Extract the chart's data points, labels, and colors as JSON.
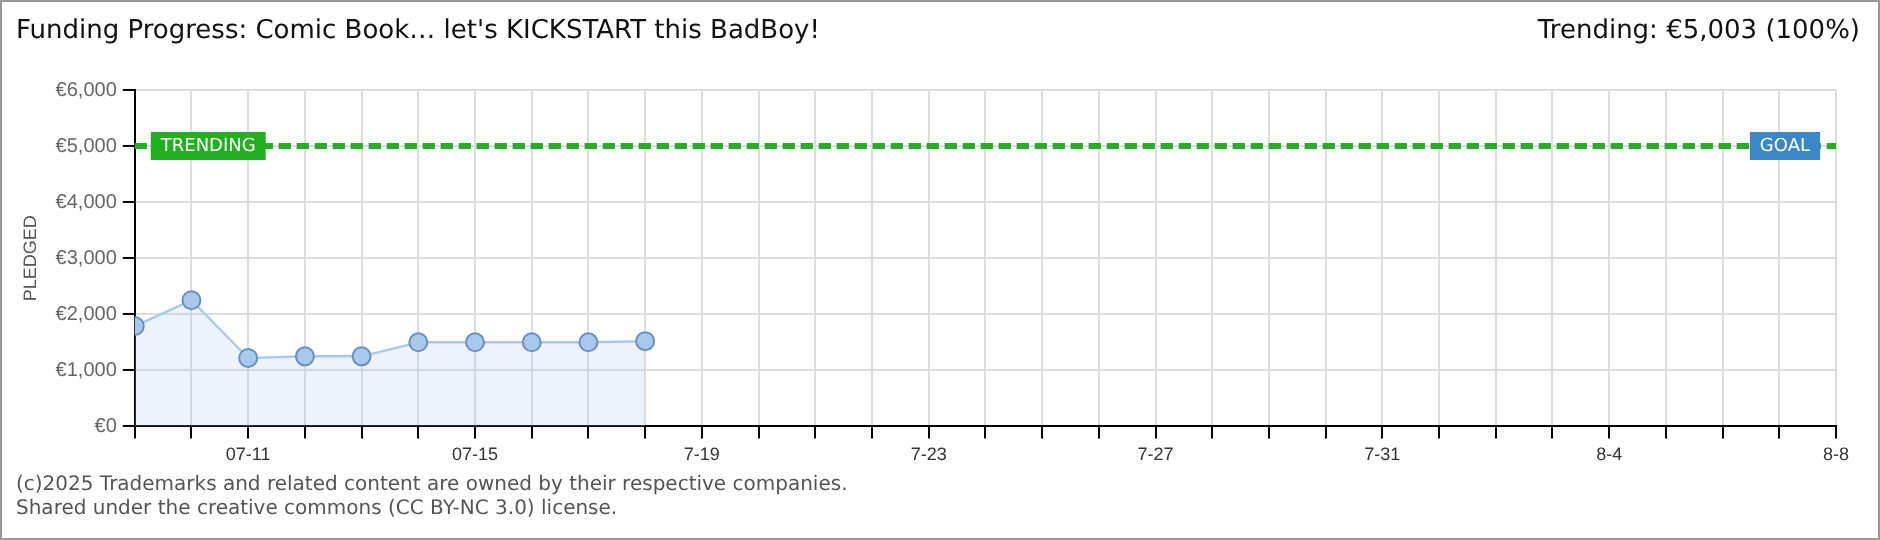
{
  "chart_data": {
    "type": "area",
    "title": "Funding Progress: Comic Book… let's KICKSTART this BadBoy!",
    "subtitle": "Trending:  €5,003 (100%)",
    "ylabel": "PLEDGED",
    "x": [
      "--07-09",
      "--07-10",
      "--07-11",
      "--07-12",
      "--07-13",
      "--07-14",
      "--07-15",
      "--07-16",
      "--07-17",
      "--07-18"
    ],
    "series": [
      {
        "color": "#a8c8ee",
        "values": [
          1790,
          2250,
          1220,
          1250,
          1250,
          1500,
          1500,
          1500,
          1500,
          1520
        ]
      }
    ],
    "xlim": [
      "--07-09",
      "--08-08"
    ],
    "xticks": [
      {
        "value": "--07-09",
        "label": null
      },
      {
        "value": "--07-10",
        "label": null
      },
      {
        "value": "--07-11",
        "label": "07-11"
      },
      {
        "value": "--07-12",
        "label": null
      },
      {
        "value": "--07-13",
        "label": null
      },
      {
        "value": "--07-14",
        "label": null
      },
      {
        "value": "--07-15",
        "label": "07-15"
      },
      {
        "value": "--07-16",
        "label": null
      },
      {
        "value": "--07-17",
        "label": null
      },
      {
        "value": "--07-18",
        "label": null
      },
      {
        "value": "--07-19",
        "label": "7-19"
      },
      {
        "value": "--07-20",
        "label": null
      },
      {
        "value": "--07-21",
        "label": null
      },
      {
        "value": "--07-22",
        "label": null
      },
      {
        "value": "--07-23",
        "label": "7-23"
      },
      {
        "value": "--07-24",
        "label": null
      },
      {
        "value": "--07-25",
        "label": null
      },
      {
        "value": "--07-26",
        "label": null
      },
      {
        "value": "--07-27",
        "label": "7-27"
      },
      {
        "value": "--07-28",
        "label": null
      },
      {
        "value": "--07-29",
        "label": null
      },
      {
        "value": "--07-30",
        "label": null
      },
      {
        "value": "--07-31",
        "label": "7-31"
      },
      {
        "value": "--08-01",
        "label": null
      },
      {
        "value": "--08-02",
        "label": null
      },
      {
        "value": "--08-03",
        "label": null
      },
      {
        "value": "--08-04",
        "label": "8-4"
      },
      {
        "value": "--08-05",
        "label": null
      },
      {
        "value": "--08-06",
        "label": null
      },
      {
        "value": "--08-07",
        "label": null
      },
      {
        "value": "--08-08",
        "label": "8-8"
      }
    ],
    "ylim": [
      0,
      6000
    ],
    "yticks": [
      {
        "value": 0,
        "label": "€0"
      },
      {
        "value": 1000,
        "label": "€1,000"
      },
      {
        "value": 2000,
        "label": "€2,000"
      },
      {
        "value": 3000,
        "label": "€3,000"
      },
      {
        "value": 4000,
        "label": "€4,000"
      },
      {
        "value": 5000,
        "label": "€5,000"
      },
      {
        "value": 6000,
        "label": "€6,000"
      }
    ],
    "ref_lines": [
      {
        "axis": "y",
        "value": 5000,
        "label": "TRENDING",
        "color": "#22b022",
        "line_style": "dashed"
      },
      {
        "axis": "y",
        "value": 5000,
        "label": "GOAL",
        "color": "#3a88c8",
        "line_style": "dashed"
      }
    ],
    "grid": true,
    "marker": "circle",
    "legend": false,
    "annotations": [
      "(c)2025 Trademarks and related content are owned by their respective companies.",
      "Shared under the creative commons (CC BY-NC 3.0) license."
    ]
  }
}
